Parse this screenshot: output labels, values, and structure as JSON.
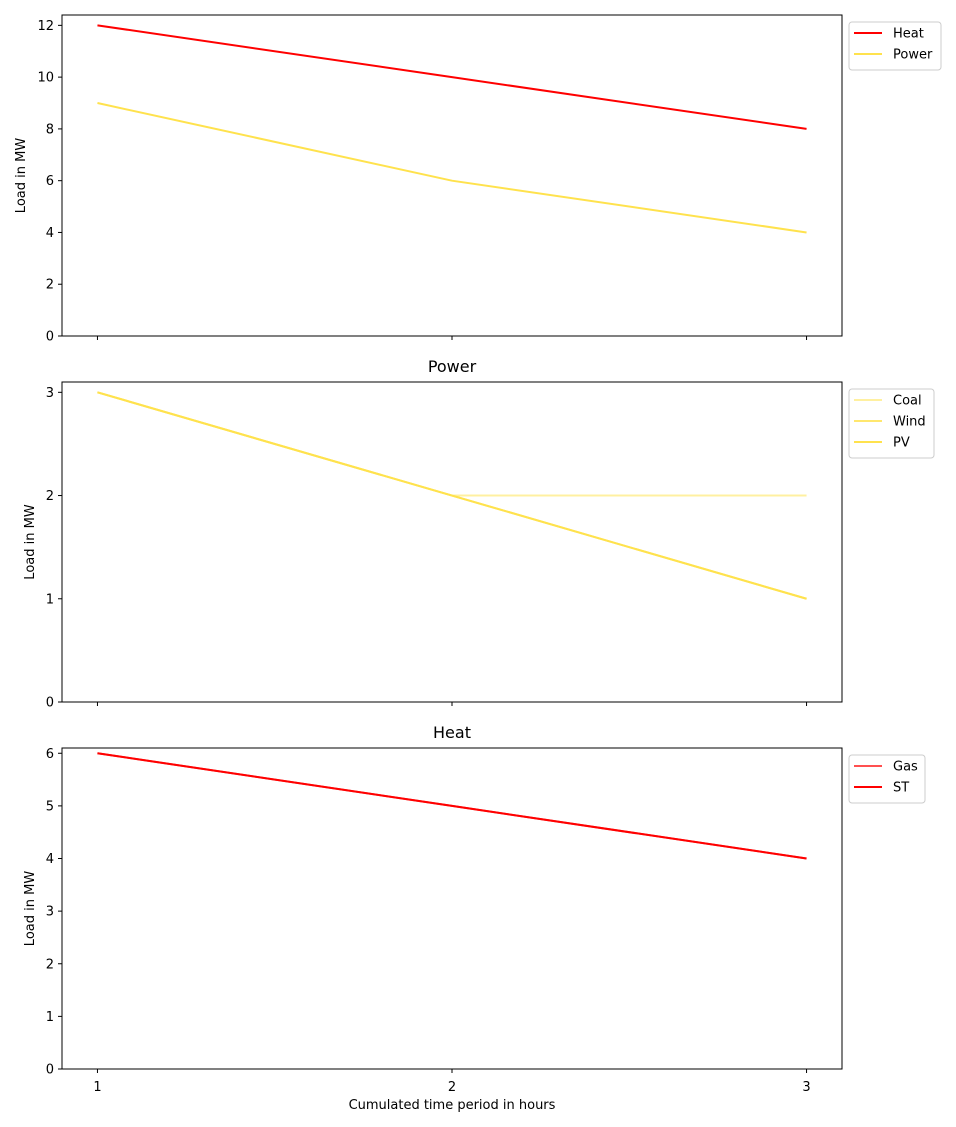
{
  "chart_data": [
    {
      "type": "line",
      "title": "",
      "xlabel": "",
      "ylabel": "Load in MW",
      "x": [
        1,
        2,
        3
      ],
      "xlim": [
        0.9,
        3.1
      ],
      "ylim": [
        0,
        12.4
      ],
      "yticks": [
        0,
        2,
        4,
        6,
        8,
        10,
        12
      ],
      "x_tick_labels_shown": false,
      "legend_position": "outside-top-right",
      "series": [
        {
          "name": "Heat",
          "values": [
            12,
            10,
            8
          ],
          "color": "#ff0000"
        },
        {
          "name": "Power",
          "values": [
            9,
            6,
            4
          ],
          "color": "#ffe24d"
        }
      ]
    },
    {
      "type": "line",
      "title": "Power",
      "xlabel": "",
      "ylabel": "Load in MW",
      "x": [
        1,
        2,
        3
      ],
      "xlim": [
        0.9,
        3.1
      ],
      "ylim": [
        0,
        3.1
      ],
      "yticks": [
        0,
        1,
        2,
        3
      ],
      "x_tick_labels_shown": false,
      "legend_position": "outside-top-right",
      "series": [
        {
          "name": "Coal",
          "values": [
            3,
            2,
            2
          ],
          "color": "#fff0a0"
        },
        {
          "name": "Wind",
          "values": [
            3,
            2,
            1
          ],
          "color": "#ffe76e"
        },
        {
          "name": "PV",
          "values": [
            3,
            2,
            1
          ],
          "color": "#ffe24d"
        }
      ]
    },
    {
      "type": "line",
      "title": "Heat",
      "xlabel": "Cumulated time period in hours",
      "ylabel": "Load in MW",
      "x": [
        1,
        2,
        3
      ],
      "xlim": [
        0.9,
        3.1
      ],
      "ylim": [
        0,
        6.1
      ],
      "yticks": [
        0,
        1,
        2,
        3,
        4,
        5,
        6
      ],
      "x_tick_labels_shown": true,
      "xticks": [
        1,
        2,
        3
      ],
      "legend_position": "outside-top-right",
      "series": [
        {
          "name": "Gas",
          "values": [
            6,
            5,
            4
          ],
          "color": "#ff5050"
        },
        {
          "name": "ST",
          "values": [
            6,
            5,
            4
          ],
          "color": "#ff0000"
        }
      ]
    }
  ]
}
